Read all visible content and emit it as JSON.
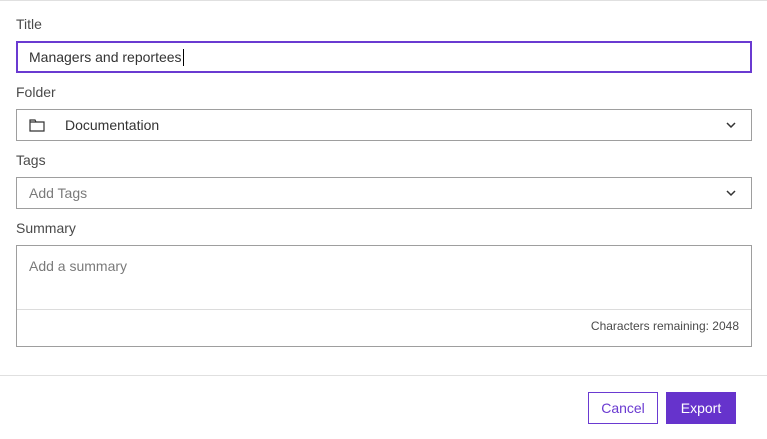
{
  "form": {
    "title_label": "Title",
    "title_value": "Managers and reportees",
    "folder_label": "Folder",
    "folder_value": "Documentation",
    "folder_icon": "folder-icon",
    "tags_label": "Tags",
    "tags_placeholder": "Add Tags",
    "summary_label": "Summary",
    "summary_placeholder": "Add a summary",
    "characters_remaining": "Characters remaining: 2048"
  },
  "footer": {
    "cancel_label": "Cancel",
    "export_label": "Export"
  },
  "colors": {
    "accent": "#6633cc"
  }
}
